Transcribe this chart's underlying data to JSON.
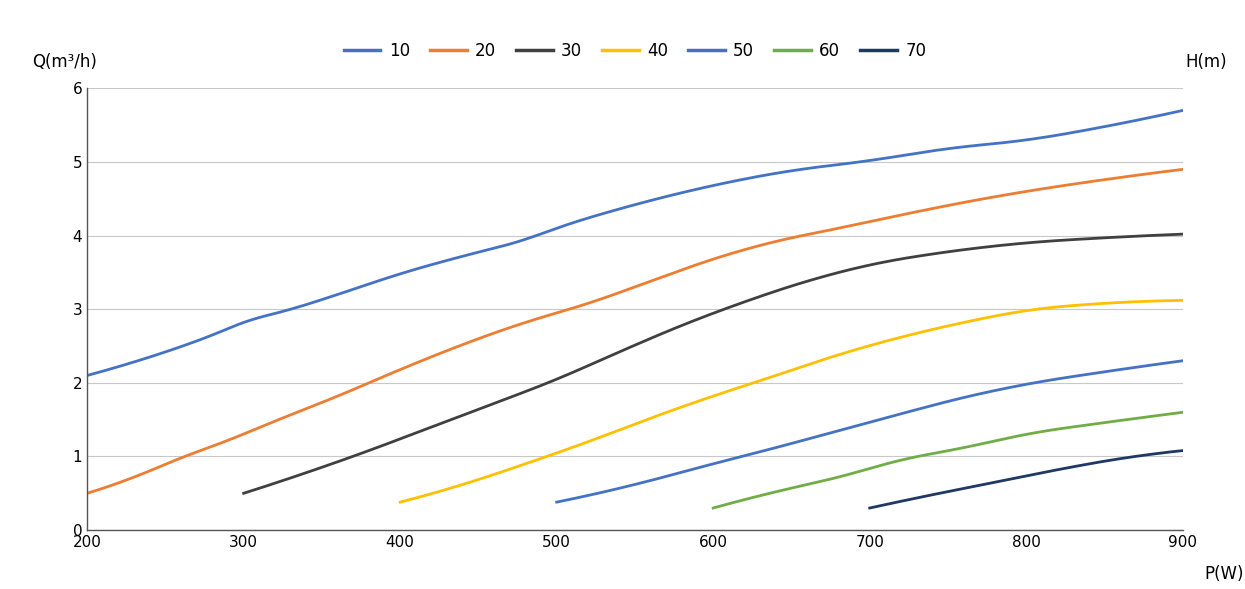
{
  "xlabel": "P(W)",
  "ylabel_left": "Q(m³/h)",
  "ylabel_right": "H(m)",
  "xlim": [
    200,
    900
  ],
  "ylim": [
    0,
    6
  ],
  "xticks": [
    200,
    300,
    400,
    500,
    600,
    700,
    800,
    900
  ],
  "yticks": [
    0,
    1,
    2,
    3,
    4,
    5,
    6
  ],
  "background_color": "#ffffff",
  "grid_color": "#c8c8c8",
  "series": [
    {
      "label": "10",
      "color": "#4472c4",
      "x": [
        200,
        220,
        250,
        280,
        300,
        330,
        360,
        400,
        440,
        480,
        500,
        550,
        600,
        650,
        700,
        750,
        800,
        850,
        900
      ],
      "y": [
        2.1,
        2.22,
        2.42,
        2.65,
        2.82,
        3.0,
        3.2,
        3.48,
        3.72,
        3.95,
        4.1,
        4.42,
        4.68,
        4.88,
        5.02,
        5.18,
        5.3,
        5.48,
        5.7
      ]
    },
    {
      "label": "20",
      "color": "#ed7d31",
      "x": [
        200,
        230,
        260,
        290,
        320,
        360,
        400,
        440,
        480,
        520,
        560,
        600,
        640,
        680,
        720,
        760,
        800,
        850,
        900
      ],
      "y": [
        0.5,
        0.72,
        0.98,
        1.22,
        1.48,
        1.82,
        2.18,
        2.52,
        2.82,
        3.08,
        3.38,
        3.68,
        3.92,
        4.1,
        4.28,
        4.45,
        4.6,
        4.76,
        4.9
      ]
    },
    {
      "label": "30",
      "color": "#404040",
      "x": [
        300,
        340,
        380,
        420,
        460,
        500,
        540,
        580,
        620,
        660,
        700,
        750,
        800,
        850,
        900
      ],
      "y": [
        0.5,
        0.78,
        1.08,
        1.4,
        1.72,
        2.05,
        2.42,
        2.78,
        3.1,
        3.38,
        3.6,
        3.78,
        3.9,
        3.97,
        4.02
      ]
    },
    {
      "label": "40",
      "color": "#ffc000",
      "x": [
        400,
        440,
        480,
        520,
        560,
        600,
        640,
        680,
        720,
        760,
        800,
        850,
        900
      ],
      "y": [
        0.38,
        0.62,
        0.9,
        1.2,
        1.52,
        1.82,
        2.1,
        2.38,
        2.62,
        2.82,
        2.98,
        3.08,
        3.12
      ]
    },
    {
      "label": "50",
      "color": "#4472c4",
      "x": [
        500,
        550,
        600,
        640,
        680,
        720,
        760,
        800,
        850,
        900
      ],
      "y": [
        0.38,
        0.62,
        0.9,
        1.12,
        1.35,
        1.58,
        1.8,
        1.98,
        2.15,
        2.3
      ]
    },
    {
      "label": "60",
      "color": "#70ad47",
      "x": [
        600,
        640,
        680,
        720,
        760,
        800,
        850,
        900
      ],
      "y": [
        0.3,
        0.52,
        0.72,
        0.95,
        1.12,
        1.3,
        1.46,
        1.6
      ]
    },
    {
      "label": "70",
      "color": "#1f3864",
      "x": [
        700,
        740,
        780,
        820,
        860,
        900
      ],
      "y": [
        0.3,
        0.48,
        0.65,
        0.82,
        0.97,
        1.08
      ]
    }
  ]
}
